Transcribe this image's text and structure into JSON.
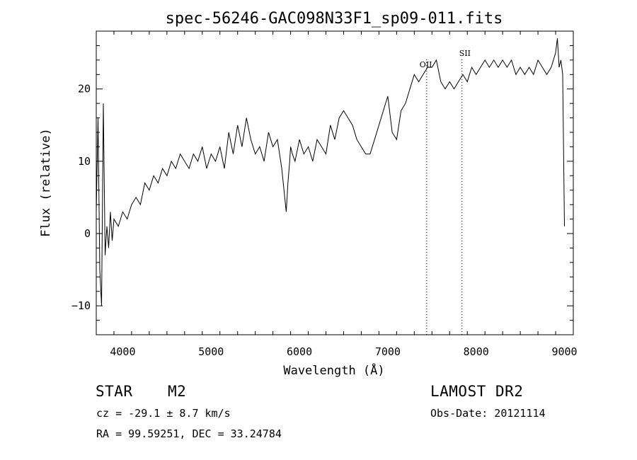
{
  "chart_data": {
    "type": "line",
    "title": "spec-56246-GAC098N33F1_sp09-011.fits",
    "xlabel": "Wavelength (Å)",
    "ylabel": "Flux (relative)",
    "xlim": [
      3700,
      9100
    ],
    "ylim": [
      -14,
      28
    ],
    "xticks": [
      4000,
      5000,
      6000,
      7000,
      8000,
      9000
    ],
    "yticks": [
      -10,
      0,
      10,
      20
    ],
    "grid": false,
    "series": [
      {
        "x": [
          3700,
          3720,
          3740,
          3760,
          3780,
          3800,
          3820,
          3840,
          3860,
          3880,
          3900,
          3950,
          4000,
          4050,
          4100,
          4150,
          4200,
          4250,
          4300,
          4350,
          4400,
          4450,
          4500,
          4550,
          4600,
          4650,
          4700,
          4750,
          4800,
          4850,
          4900,
          4950,
          5000,
          5050,
          5100,
          5150,
          5200,
          5250,
          5300,
          5350,
          5400,
          5450,
          5500,
          5550,
          5600,
          5650,
          5700,
          5750,
          5800,
          5850,
          5870,
          5890,
          5900,
          5920,
          5950,
          6000,
          6050,
          6100,
          6150,
          6200,
          6250,
          6300,
          6350,
          6400,
          6450,
          6500,
          6550,
          6600,
          6650,
          6700,
          6750,
          6800,
          6850,
          6900,
          6950,
          7000,
          7050,
          7100,
          7150,
          7200,
          7250,
          7300,
          7350,
          7400,
          7450,
          7500,
          7550,
          7600,
          7650,
          7700,
          7750,
          7800,
          7850,
          7900,
          7950,
          8000,
          8050,
          8100,
          8150,
          8200,
          8250,
          8300,
          8350,
          8400,
          8450,
          8500,
          8550,
          8600,
          8650,
          8700,
          8750,
          8800,
          8850,
          8900,
          8920,
          8940,
          8960,
          8980,
          9000
        ],
        "y": [
          3,
          16,
          -5,
          -10,
          18,
          -3,
          1,
          -2,
          3,
          -1,
          2,
          1,
          3,
          2,
          4,
          5,
          4,
          7,
          6,
          8,
          7,
          9,
          8,
          10,
          9,
          11,
          10,
          9,
          11,
          10,
          12,
          9,
          11,
          10,
          12,
          9,
          14,
          11,
          15,
          12,
          16,
          13,
          11,
          12,
          10,
          14,
          12,
          13,
          9,
          3,
          7,
          10,
          12,
          11,
          10,
          13,
          11,
          12,
          10,
          13,
          12,
          11,
          15,
          13,
          16,
          17,
          16,
          15,
          13,
          12,
          11,
          11,
          13,
          15,
          17,
          19,
          14,
          13,
          17,
          18,
          20,
          22,
          21,
          22,
          23,
          23,
          24,
          21,
          20,
          21,
          20,
          21,
          22,
          21,
          23,
          22,
          23,
          24,
          23,
          24,
          23,
          24,
          23,
          24,
          22,
          23,
          22,
          23,
          22,
          24,
          23,
          22,
          23,
          25,
          27,
          23,
          24,
          22,
          1
        ]
      }
    ],
    "annotations": [
      {
        "label": "OII",
        "x": 7440
      },
      {
        "label": "SII",
        "x": 7840
      }
    ]
  },
  "footer": {
    "object_type": "STAR",
    "subclass": "M2",
    "survey": "LAMOST DR2",
    "velocity": "cz = -29.1 ± 8.7 km/s",
    "obs_date": "Obs-Date: 20121114",
    "coords": "RA =  99.59251, DEC =  33.24784"
  }
}
